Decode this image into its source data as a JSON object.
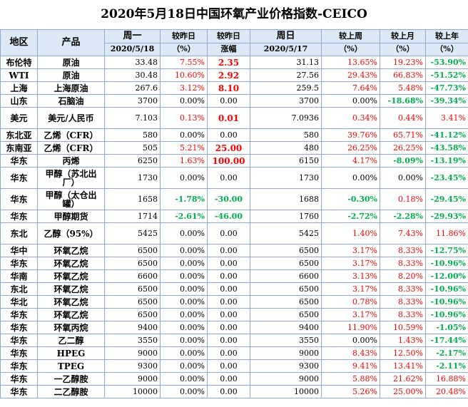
{
  "title": "2020年5月18日中国环氧产业价格指数-CEICO",
  "colors": {
    "header_bg": "#dbe9f7",
    "border": "#8faad8",
    "red": "#ff0000",
    "green": "#00b050"
  },
  "header": {
    "region": "地区",
    "product": "产品",
    "mon": "周一",
    "mon_date": "2020/5/18",
    "prev_day": "较昨日",
    "prev_day_unit": "（%）",
    "prev_day_chg": "较昨日",
    "prev_day_chg_sub": "涨幅",
    "sun": "周日",
    "sun_date": "2020/5/17",
    "prev_week": "较上周",
    "prev_week_unit": "（%）",
    "prev_month": "较上月",
    "prev_month_unit": "（%）",
    "prev_year": "较上年",
    "prev_year_unit": "（%）"
  },
  "rows": [
    {
      "region": "布伦特",
      "product": "原油",
      "mon": "33.48",
      "d_pct": "7.55%",
      "d_chg": "2.35",
      "sun": "31.13",
      "w": "13.65%",
      "m": "19.23%",
      "y": "-53.90%",
      "s": {
        "d_pct": "red",
        "d_chg": "boldred",
        "w": "red",
        "m": "red",
        "y": "green"
      }
    },
    {
      "region": "WTI",
      "product": "原油",
      "mon": "30.48",
      "d_pct": "10.60%",
      "d_chg": "2.92",
      "sun": "27.56",
      "w": "29.43%",
      "m": "66.83%",
      "y": "-51.52%",
      "s": {
        "d_pct": "red",
        "d_chg": "boldred",
        "w": "red",
        "m": "red",
        "y": "green"
      }
    },
    {
      "region": "上海",
      "product": "上海原油",
      "mon": "267.6",
      "d_pct": "3.12%",
      "d_chg": "8.10",
      "sun": "259.5",
      "w": "7.64%",
      "m": "5.48%",
      "y": "-47.73%",
      "s": {
        "d_pct": "red",
        "d_chg": "boldred",
        "w": "red",
        "m": "red",
        "y": "green"
      }
    },
    {
      "region": "山东",
      "product": "石脑油",
      "mon": "3700",
      "d_pct": "0.00%",
      "d_chg": "0.00",
      "sun": "3700",
      "w": "0.00%",
      "m": "-18.68%",
      "y": "-39.34%",
      "s": {
        "d_pct": "",
        "d_chg": "",
        "w": "",
        "m": "green",
        "y": "green"
      }
    },
    {
      "region": "美元",
      "product": "美元/人民币",
      "mon": "7.103",
      "d_pct": "0.13%",
      "d_chg": "0.01",
      "sun": "7.0936",
      "w": "0.34%",
      "m": "0.44%",
      "y": "3.41%",
      "s": {
        "d_pct": "red",
        "d_chg": "boldred",
        "w": "red",
        "m": "red",
        "y": "red"
      }
    },
    {
      "region": "东北亚",
      "product": "乙烯（CFR）",
      "mon": "580",
      "d_pct": "0.00%",
      "d_chg": "0.00",
      "sun": "580",
      "w": "39.76%",
      "m": "65.71%",
      "y": "-41.12%",
      "s": {
        "d_pct": "",
        "d_chg": "",
        "w": "red",
        "m": "red",
        "y": "green"
      }
    },
    {
      "region": "东南亚",
      "product": "乙烯（CFR）",
      "mon": "505",
      "d_pct": "5.21%",
      "d_chg": "25.00",
      "sun": "480",
      "w": "26.25%",
      "m": "26.25%",
      "y": "-43.58%",
      "s": {
        "d_pct": "red",
        "d_chg": "boldred",
        "w": "red",
        "m": "red",
        "y": "green"
      }
    },
    {
      "region": "华东",
      "product": "丙烯",
      "mon": "6250",
      "d_pct": "1.63%",
      "d_chg": "100.00",
      "sun": "6150",
      "w": "4.17%",
      "m": "-8.09%",
      "y": "-13.19%",
      "s": {
        "d_pct": "red",
        "d_chg": "boldred",
        "w": "red",
        "m": "green",
        "y": "green"
      }
    },
    {
      "region": "华东",
      "product": "甲醇（苏北出厂）",
      "mon": "1730",
      "d_pct": "0.00%",
      "d_chg": "0.00",
      "sun": "1730",
      "w": "0.00%",
      "m": "0.00%",
      "y": "-23.45%",
      "s": {
        "d_pct": "",
        "d_chg": "",
        "w": "",
        "m": "",
        "y": "green"
      }
    },
    {
      "region": "华东",
      "product": "甲醇（太仓出罐）",
      "mon": "1658",
      "d_pct": "-1.78%",
      "d_chg": "-30.00",
      "sun": "1688",
      "w": "-0.30%",
      "m": "0.18%",
      "y": "-29.45%",
      "s": {
        "d_pct": "green",
        "d_chg": "green",
        "w": "green",
        "m": "red",
        "y": "green"
      }
    },
    {
      "region": "华东",
      "product": "甲醇期货",
      "mon": "1714",
      "d_pct": "-2.61%",
      "d_chg": "-46.00",
      "sun": "1760",
      "w": "-2.72%",
      "m": "-2.28%",
      "y": "-29.93%",
      "s": {
        "d_pct": "green",
        "d_chg": "green",
        "w": "green",
        "m": "green",
        "y": "green"
      }
    },
    {
      "region": "东北",
      "product": "乙醇（95%）",
      "mon": "5425",
      "d_pct": "0.00%",
      "d_chg": "0.00",
      "sun": "5425",
      "w": "1.40%",
      "m": "7.43%",
      "y": "11.86%",
      "s": {
        "d_pct": "",
        "d_chg": "",
        "w": "red",
        "m": "red",
        "y": "red"
      }
    },
    {
      "region": "华中",
      "product": "环氧乙烷",
      "mon": "6500",
      "d_pct": "0.00%",
      "d_chg": "0.00",
      "sun": "6500",
      "w": "3.17%",
      "m": "8.33%",
      "y": "-12.75%",
      "s": {
        "d_pct": "",
        "d_chg": "",
        "w": "red",
        "m": "red",
        "y": "green"
      }
    },
    {
      "region": "华东",
      "product": "环氧乙烷",
      "mon": "6500",
      "d_pct": "0.00%",
      "d_chg": "0.00",
      "sun": "6500",
      "w": "3.17%",
      "m": "8.33%",
      "y": "-10.96%",
      "s": {
        "d_pct": "",
        "d_chg": "",
        "w": "red",
        "m": "red",
        "y": "green"
      }
    },
    {
      "region": "华南",
      "product": "环氧乙烷",
      "mon": "6600",
      "d_pct": "0.00%",
      "d_chg": "0.00",
      "sun": "6600",
      "w": "3.13%",
      "m": "8.20%",
      "y": "-12.00%",
      "s": {
        "d_pct": "",
        "d_chg": "",
        "w": "red",
        "m": "red",
        "y": "green"
      }
    },
    {
      "region": "东北",
      "product": "环氧乙烷",
      "mon": "6500",
      "d_pct": "0.00%",
      "d_chg": "0.00",
      "sun": "6500",
      "w": "3.17%",
      "m": "8.33%",
      "y": "-10.96%",
      "s": {
        "d_pct": "",
        "d_chg": "",
        "w": "red",
        "m": "red",
        "y": "green"
      }
    },
    {
      "region": "华北",
      "product": "环氧乙烷",
      "mon": "6500",
      "d_pct": "0.00%",
      "d_chg": "0.00",
      "sun": "6500",
      "w": "0.78%",
      "m": "8.33%",
      "y": "-10.96%",
      "s": {
        "d_pct": "",
        "d_chg": "",
        "w": "red",
        "m": "red",
        "y": "green"
      }
    },
    {
      "region": "华东",
      "product": "环氧乙烷",
      "mon": "6500",
      "d_pct": "0.00%",
      "d_chg": "0.00",
      "sun": "6500",
      "w": "3.17%",
      "m": "8.33%",
      "y": "-10.96%",
      "s": {
        "d_pct": "",
        "d_chg": "",
        "w": "red",
        "m": "red",
        "y": "green"
      }
    },
    {
      "region": "华东",
      "product": "环氧丙烷",
      "mon": "9400",
      "d_pct": "0.00%",
      "d_chg": "0.00",
      "sun": "9400",
      "w": "11.90%",
      "m": "10.59%",
      "y": "-1.05%",
      "s": {
        "d_pct": "",
        "d_chg": "",
        "w": "red",
        "m": "red",
        "y": "green"
      }
    },
    {
      "region": "华东",
      "product": "乙二醇",
      "mon": "3550",
      "d_pct": "0.00%",
      "d_chg": "0.00",
      "sun": "3550",
      "w": "0.00%",
      "m": "1.43%",
      "y": "-17.44%",
      "s": {
        "d_pct": "",
        "d_chg": "",
        "w": "",
        "m": "red",
        "y": "green"
      }
    },
    {
      "region": "华东",
      "product": "HPEG",
      "mon": "9000",
      "d_pct": "0.00%",
      "d_chg": "0.00",
      "sun": "9000",
      "w": "8.43%",
      "m": "12.50%",
      "y": "-2.17%",
      "s": {
        "d_pct": "",
        "d_chg": "",
        "w": "red",
        "m": "red",
        "y": "green"
      }
    },
    {
      "region": "华东",
      "product": "TPEG",
      "mon": "9300",
      "d_pct": "0.00%",
      "d_chg": "0.00",
      "sun": "9300",
      "w": "9.41%",
      "m": "13.41%",
      "y": "-2.11%",
      "s": {
        "d_pct": "",
        "d_chg": "",
        "w": "red",
        "m": "red",
        "y": "green"
      }
    },
    {
      "region": "华东",
      "product": "一乙醇胺",
      "mon": "9000",
      "d_pct": "0.00%",
      "d_chg": "0.00",
      "sun": "9000",
      "w": "5.88%",
      "m": "21.62%",
      "y": "16.88%",
      "s": {
        "d_pct": "",
        "d_chg": "",
        "w": "red",
        "m": "red",
        "y": "red"
      }
    },
    {
      "region": "华东",
      "product": "二乙醇胺",
      "mon": "10000",
      "d_pct": "0.00%",
      "d_chg": "0.00",
      "sun": "10000",
      "w": "5.26%",
      "m": "25.00%",
      "y": "20.48%",
      "s": {
        "d_pct": "",
        "d_chg": "",
        "w": "red",
        "m": "red",
        "y": "red"
      }
    }
  ]
}
